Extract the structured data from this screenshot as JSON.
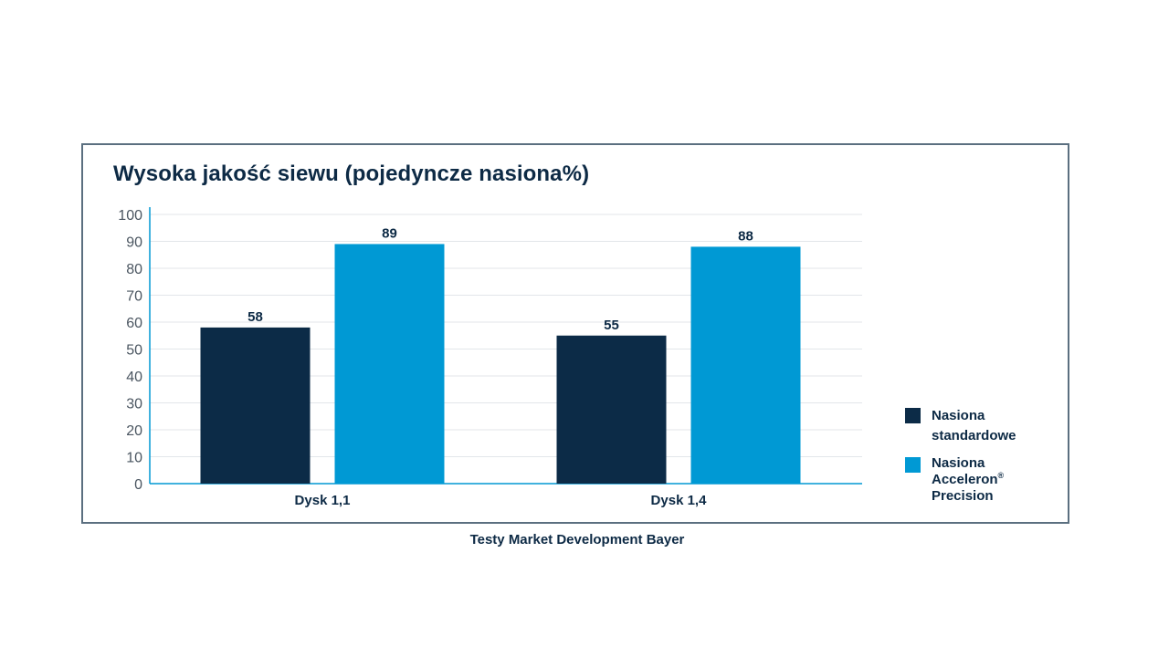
{
  "chart_data": {
    "type": "bar",
    "title": "Wysoka jakość siewu (pojedyncze nasiona%)",
    "categories": [
      "Dysk 1,1",
      "Dysk 1,4"
    ],
    "series": [
      {
        "name": "Nasiona standardowe",
        "values": [
          58,
          55
        ],
        "color": "#0c2b47"
      },
      {
        "name": "Nasiona Acceleron® Precision",
        "values": [
          89,
          88
        ],
        "color": "#0099d4"
      }
    ],
    "yticks": [
      0,
      10,
      20,
      30,
      40,
      50,
      60,
      70,
      80,
      90,
      100
    ],
    "ylim": [
      0,
      100
    ],
    "grid": true,
    "legend_position": "right"
  },
  "legend": {
    "items": [
      {
        "line1": "Nasiona",
        "line2": "standardowe",
        "sup": "",
        "color": "#0c2b47"
      },
      {
        "line1": "Nasiona",
        "line2": "Acceleron",
        "sup": "®",
        "line3": "Precision",
        "color": "#0099d4"
      }
    ]
  },
  "source": "Testy Market Development Bayer"
}
